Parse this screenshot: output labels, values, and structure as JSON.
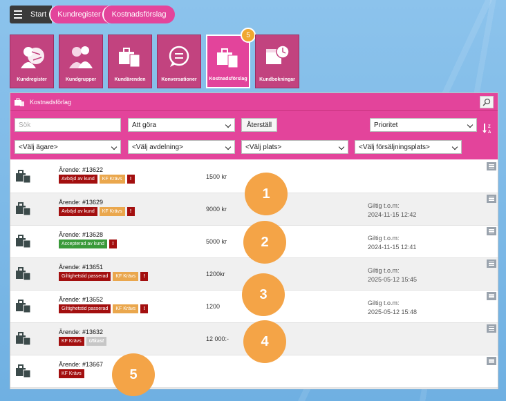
{
  "breadcrumb": {
    "start": "Start",
    "kundregister": "Kundregister",
    "kostnadsforslag": "Kostnadsförslag"
  },
  "tiles": [
    {
      "label": "Kundregister",
      "icon": "person-globe-icon"
    },
    {
      "label": "Kundgrupper",
      "icon": "group-people-icon"
    },
    {
      "label": "Kundärenden",
      "icon": "briefcase-docs-icon"
    },
    {
      "label": "Konversationer",
      "icon": "chat-bubble-icon"
    },
    {
      "label": "Kostnadsförslag",
      "icon": "briefcase-docs-icon",
      "badge": "5"
    },
    {
      "label": "Kundbokningar",
      "icon": "calendar-clock-icon"
    }
  ],
  "panel": {
    "title": "Kostnadsförlag",
    "search_placeholder": "Sök",
    "status_select": "Att göra",
    "reset_button": "Återställ",
    "priority_select": "Prioritet",
    "owner_select": "<Välj ägare>",
    "department_select": "<Välj avdelning>",
    "location_select": "<Välj plats>",
    "salespoint_select": "<Välj försäljningsplats>"
  },
  "rows": [
    {
      "title": "Ärende: #13622",
      "b1": "Avböjd av kund",
      "b2": "KF Krävs",
      "b3": "!",
      "amount": "1500 kr",
      "valid_label": "",
      "valid_date": ""
    },
    {
      "title": "Ärende: #13629",
      "b1": "Avböjd av kund",
      "b2": "KF Krävs",
      "b3": "!",
      "amount": "9000 kr",
      "valid_label": "Giltig t.o.m:",
      "valid_date": "2024-11-15 12:42"
    },
    {
      "title": "Ärende: #13628",
      "b1": "Accepterad av kund",
      "b3": "!",
      "amount": "5000 kr",
      "valid_label": "Giltig t.o.m:",
      "valid_date": "2024-11-15 12:41"
    },
    {
      "title": "Ärende: #13651",
      "b1": "Giltighetstid passerad",
      "b2": "KF Krävs",
      "b3": "!",
      "amount": "1200kr",
      "valid_label": "Giltig t.o.m:",
      "valid_date": "2025-05-12 15:45"
    },
    {
      "title": "Ärende: #13652",
      "b1": "Giltighetstid passerad",
      "b2": "KF Krävs",
      "b3": "!",
      "amount": "1200",
      "valid_label": "Giltig t.o.m:",
      "valid_date": "2025-05-12 15:48"
    },
    {
      "title": "Ärende: #13632",
      "b1": "KF Krävs",
      "b2": "Utkast",
      "amount": "12 000:-",
      "valid_label": "",
      "valid_date": ""
    },
    {
      "title": "Ärende: #13667",
      "b1": "KF Krävs",
      "amount": "",
      "valid_label": "",
      "valid_date": ""
    }
  ],
  "callouts": [
    "1",
    "2",
    "3",
    "4",
    "5"
  ],
  "colors": {
    "pink": "#e3449b",
    "tile": "#c2437f",
    "orange": "#f4a447",
    "red": "#a30f0f",
    "green": "#3a9a3a"
  }
}
